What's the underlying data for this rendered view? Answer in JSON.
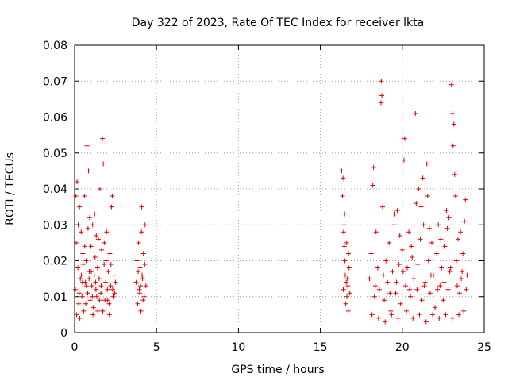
{
  "chart_data": {
    "type": "scatter",
    "title": "Day 322 of 2023, Rate Of TEC Index for receiver lkta",
    "xlabel": "GPS time / hours",
    "ylabel": "ROTI / TECUs",
    "xlim": [
      0,
      25
    ],
    "ylim": [
      0,
      0.08
    ],
    "x_ticks": [
      0,
      5,
      10,
      15,
      20,
      25
    ],
    "x_tick_labels": [
      "0",
      "5",
      "10",
      "15",
      "20",
      "25"
    ],
    "y_ticks": [
      0,
      0.01,
      0.02,
      0.03,
      0.04,
      0.05,
      0.06,
      0.07,
      0.08
    ],
    "y_tick_labels": [
      "0",
      "0.01",
      "0.02",
      "0.03",
      "0.04",
      "0.05",
      "0.06",
      "0.07",
      "0.08"
    ],
    "grid": true,
    "marker": "+",
    "color": "#e00000",
    "series": [
      {
        "name": "ROTI",
        "points": [
          [
            0.05,
            0.012
          ],
          [
            0.1,
            0.025
          ],
          [
            0.15,
            0.042
          ],
          [
            0.2,
            0.018
          ],
          [
            0.25,
            0.008
          ],
          [
            0.3,
            0.035
          ],
          [
            0.35,
            0.015
          ],
          [
            0.4,
            0.028
          ],
          [
            0.45,
            0.01
          ],
          [
            0.5,
            0.022
          ],
          [
            0.55,
            0.006
          ],
          [
            0.6,
            0.038
          ],
          [
            0.65,
            0.014
          ],
          [
            0.7,
            0.02
          ],
          [
            0.75,
            0.052
          ],
          [
            0.8,
            0.011
          ],
          [
            0.85,
            0.045
          ],
          [
            0.9,
            0.017
          ],
          [
            0.95,
            0.009
          ],
          [
            1.0,
            0.024
          ],
          [
            1.05,
            0.013
          ],
          [
            1.1,
            0.03
          ],
          [
            1.15,
            0.007
          ],
          [
            1.2,
            0.016
          ],
          [
            1.25,
            0.021
          ],
          [
            1.3,
            0.012
          ],
          [
            1.35,
            0.01
          ],
          [
            1.4,
            0.018
          ],
          [
            1.45,
            0.026
          ],
          [
            1.5,
            0.015
          ],
          [
            1.55,
            0.04
          ],
          [
            1.6,
            0.011
          ],
          [
            1.65,
            0.023
          ],
          [
            1.7,
            0.054
          ],
          [
            1.75,
            0.047
          ],
          [
            1.8,
            0.019
          ],
          [
            1.85,
            0.009
          ],
          [
            1.9,
            0.014
          ],
          [
            1.95,
            0.028
          ],
          [
            2.0,
            0.012
          ],
          [
            2.05,
            0.017
          ],
          [
            2.1,
            0.008
          ],
          [
            2.15,
            0.022
          ],
          [
            2.2,
            0.013
          ],
          [
            2.25,
            0.035
          ],
          [
            2.3,
            0.038
          ],
          [
            2.35,
            0.01
          ],
          [
            2.4,
            0.016
          ],
          [
            2.45,
            0.011
          ],
          [
            2.5,
            0.014
          ],
          [
            0.12,
            0.005
          ],
          [
            0.32,
            0.004
          ],
          [
            0.52,
            0.019
          ],
          [
            0.72,
            0.013
          ],
          [
            0.92,
            0.032
          ],
          [
            1.12,
            0.005
          ],
          [
            1.32,
            0.027
          ],
          [
            1.52,
            0.009
          ],
          [
            1.72,
            0.006
          ],
          [
            1.92,
            0.02
          ],
          [
            2.12,
            0.005
          ],
          [
            2.32,
            0.012
          ],
          [
            0.22,
            0.03
          ],
          [
            0.42,
            0.016
          ],
          [
            0.62,
            0.024
          ],
          [
            0.82,
            0.029
          ],
          [
            1.02,
            0.017
          ],
          [
            1.22,
            0.033
          ],
          [
            1.42,
            0.006
          ],
          [
            1.62,
            0.013
          ],
          [
            1.82,
            0.025
          ],
          [
            2.02,
            0.009
          ],
          [
            2.22,
            0.019
          ],
          [
            0.08,
            0.038
          ],
          [
            0.28,
            0.011
          ],
          [
            0.48,
            0.014
          ],
          [
            0.68,
            0.008
          ],
          [
            0.88,
            0.015
          ],
          [
            1.08,
            0.01
          ],
          [
            1.28,
            0.014
          ],
          [
            3.75,
            0.014
          ],
          [
            3.8,
            0.02
          ],
          [
            3.85,
            0.008
          ],
          [
            3.9,
            0.025
          ],
          [
            3.95,
            0.012
          ],
          [
            4.0,
            0.018
          ],
          [
            4.05,
            0.006
          ],
          [
            4.1,
            0.035
          ],
          [
            4.15,
            0.015
          ],
          [
            4.2,
            0.022
          ],
          [
            4.25,
            0.01
          ],
          [
            4.3,
            0.03
          ],
          [
            4.35,
            0.013
          ],
          [
            3.88,
            0.017
          ],
          [
            3.98,
            0.011
          ],
          [
            4.08,
            0.028
          ],
          [
            4.18,
            0.009
          ],
          [
            4.28,
            0.019
          ],
          [
            4.12,
            0.016
          ],
          [
            4.02,
            0.013
          ],
          [
            16.3,
            0.045
          ],
          [
            16.35,
            0.038
          ],
          [
            16.4,
            0.012
          ],
          [
            16.45,
            0.03
          ],
          [
            16.5,
            0.02
          ],
          [
            16.55,
            0.008
          ],
          [
            16.6,
            0.025
          ],
          [
            16.65,
            0.015
          ],
          [
            16.7,
            0.006
          ],
          [
            16.75,
            0.018
          ],
          [
            16.8,
            0.011
          ],
          [
            16.42,
            0.028
          ],
          [
            16.52,
            0.016
          ],
          [
            16.62,
            0.01
          ],
          [
            16.72,
            0.022
          ],
          [
            16.48,
            0.033
          ],
          [
            16.58,
            0.014
          ],
          [
            16.38,
            0.043
          ],
          [
            16.68,
            0.013
          ],
          [
            16.46,
            0.024
          ],
          [
            18.0,
            0.015
          ],
          [
            18.1,
            0.022
          ],
          [
            18.2,
            0.041
          ],
          [
            18.25,
            0.046
          ],
          [
            18.3,
            0.01
          ],
          [
            18.4,
            0.028
          ],
          [
            18.5,
            0.018
          ],
          [
            18.6,
            0.012
          ],
          [
            18.7,
            0.064
          ],
          [
            18.72,
            0.07
          ],
          [
            18.75,
            0.066
          ],
          [
            18.8,
            0.035
          ],
          [
            18.9,
            0.009
          ],
          [
            19.0,
            0.02
          ],
          [
            19.1,
            0.014
          ],
          [
            19.2,
            0.025
          ],
          [
            19.3,
            0.006
          ],
          [
            19.4,
            0.017
          ],
          [
            19.5,
            0.03
          ],
          [
            19.6,
            0.011
          ],
          [
            19.7,
            0.034
          ],
          [
            19.8,
            0.019
          ],
          [
            19.9,
            0.008
          ],
          [
            20.0,
            0.023
          ],
          [
            20.1,
            0.048
          ],
          [
            20.15,
            0.054
          ],
          [
            20.2,
            0.013
          ],
          [
            20.3,
            0.018
          ],
          [
            20.4,
            0.028
          ],
          [
            20.5,
            0.01
          ],
          [
            20.6,
            0.021
          ],
          [
            20.7,
            0.015
          ],
          [
            20.8,
            0.061
          ],
          [
            20.85,
            0.036
          ],
          [
            20.9,
            0.012
          ],
          [
            21.0,
            0.04
          ],
          [
            21.1,
            0.026
          ],
          [
            21.2,
            0.009
          ],
          [
            21.3,
            0.03
          ],
          [
            21.4,
            0.014
          ],
          [
            21.5,
            0.047
          ],
          [
            21.6,
            0.02
          ],
          [
            21.7,
            0.011
          ],
          [
            21.8,
            0.025
          ],
          [
            21.9,
            0.016
          ],
          [
            22.0,
            0.007
          ],
          [
            22.1,
            0.022
          ],
          [
            22.2,
            0.03
          ],
          [
            22.3,
            0.013
          ],
          [
            22.4,
            0.018
          ],
          [
            22.5,
            0.009
          ],
          [
            22.6,
            0.024
          ],
          [
            22.7,
            0.034
          ],
          [
            22.8,
            0.012
          ],
          [
            22.9,
            0.017
          ],
          [
            23.0,
            0.069
          ],
          [
            23.05,
            0.061
          ],
          [
            23.1,
            0.052
          ],
          [
            23.15,
            0.058
          ],
          [
            23.2,
            0.044
          ],
          [
            23.25,
            0.038
          ],
          [
            23.3,
            0.02
          ],
          [
            23.4,
            0.026
          ],
          [
            23.5,
            0.011
          ],
          [
            23.6,
            0.015
          ],
          [
            23.7,
            0.022
          ],
          [
            23.8,
            0.031
          ],
          [
            23.85,
            0.037
          ],
          [
            23.9,
            0.012
          ],
          [
            23.95,
            0.016
          ],
          [
            18.15,
            0.005
          ],
          [
            18.55,
            0.004
          ],
          [
            18.95,
            0.003
          ],
          [
            19.35,
            0.005
          ],
          [
            19.75,
            0.004
          ],
          [
            20.25,
            0.006
          ],
          [
            20.65,
            0.004
          ],
          [
            21.05,
            0.005
          ],
          [
            21.45,
            0.003
          ],
          [
            21.85,
            0.005
          ],
          [
            22.25,
            0.004
          ],
          [
            22.65,
            0.005
          ],
          [
            23.05,
            0.004
          ],
          [
            23.45,
            0.005
          ],
          [
            23.75,
            0.006
          ],
          [
            18.35,
            0.013
          ],
          [
            18.85,
            0.016
          ],
          [
            19.25,
            0.011
          ],
          [
            19.65,
            0.014
          ],
          [
            20.05,
            0.017
          ],
          [
            20.45,
            0.012
          ],
          [
            20.95,
            0.019
          ],
          [
            21.35,
            0.013
          ],
          [
            21.75,
            0.016
          ],
          [
            22.15,
            0.012
          ],
          [
            22.55,
            0.014
          ],
          [
            22.95,
            0.018
          ],
          [
            23.35,
            0.013
          ],
          [
            23.65,
            0.017
          ],
          [
            21.25,
            0.043
          ],
          [
            21.55,
            0.038
          ],
          [
            21.15,
            0.035
          ],
          [
            22.85,
            0.032
          ],
          [
            22.75,
            0.029
          ],
          [
            19.55,
            0.033
          ],
          [
            19.85,
            0.027
          ],
          [
            20.55,
            0.024
          ],
          [
            21.65,
            0.029
          ],
          [
            22.35,
            0.026
          ],
          [
            23.55,
            0.028
          ]
        ]
      }
    ]
  }
}
